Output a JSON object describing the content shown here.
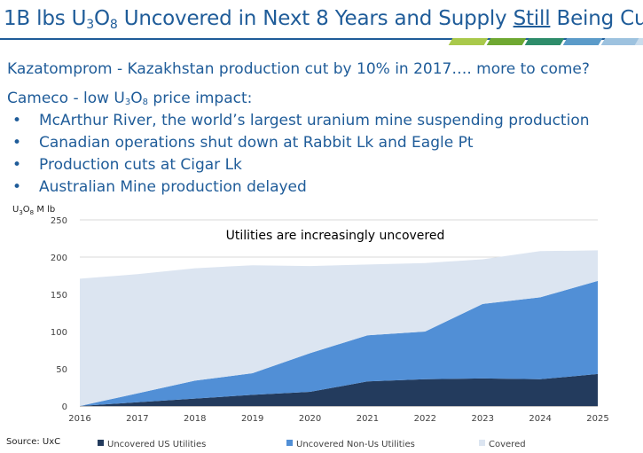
{
  "slide": {
    "title_parts": [
      "1B lbs U",
      "3",
      "O",
      "8",
      " Uncovered in Next 8 Years and Supply ",
      "Still",
      " Being Cut"
    ],
    "kaz_line": "Kazatomprom -  Kazakhstan production cut by 10% in 2017…. more to come?",
    "cameco_parts": [
      "Cameco  - low U",
      "3",
      "O",
      "8",
      " price impact:"
    ],
    "bullets": [
      "McArthur River, the world’s largest uranium mine suspending production",
      "Canadian operations shut down at Rabbit Lk and  Eagle Pt",
      "Production cuts at Cigar Lk",
      "Australian Mine production delayed"
    ],
    "bullet_glyph": "•",
    "source": "Source: UxC"
  },
  "colors": {
    "title": "#1f5c99",
    "stripes": [
      "#a9c94b",
      "#6fa832",
      "#2e8c6a",
      "#5b9bc9",
      "#9dc2df",
      "#c9dcec"
    ]
  },
  "chart_data": {
    "type": "area",
    "stacked": true,
    "title": "Utilities are increasingly uncovered",
    "ylabel_parts": [
      "U",
      "3",
      "O",
      "8",
      " M lb"
    ],
    "xlabel": "",
    "x": [
      "2016",
      "2017",
      "2018",
      "2019",
      "2020",
      "2021",
      "2022",
      "2023",
      "2024",
      "2025"
    ],
    "yticks": [
      "0",
      "50",
      "100",
      "150",
      "200",
      "250"
    ],
    "ylim": [
      0,
      250
    ],
    "grid": true,
    "legend_position": "bottom",
    "series": [
      {
        "name": "Uncovered US Utilities",
        "color": "#233b5d",
        "values": [
          0,
          5,
          10,
          15,
          19,
          33,
          36,
          37,
          36,
          43
        ]
      },
      {
        "name": "Uncovered Non-Us Utilities",
        "color": "#518fd6",
        "values": [
          0,
          12,
          24,
          29,
          52,
          62,
          64,
          100,
          110,
          125
        ]
      },
      {
        "name": "Covered",
        "color": "#dce5f1",
        "values": [
          171,
          160,
          151,
          145,
          117,
          95,
          92,
          60,
          62,
          41
        ]
      }
    ]
  }
}
